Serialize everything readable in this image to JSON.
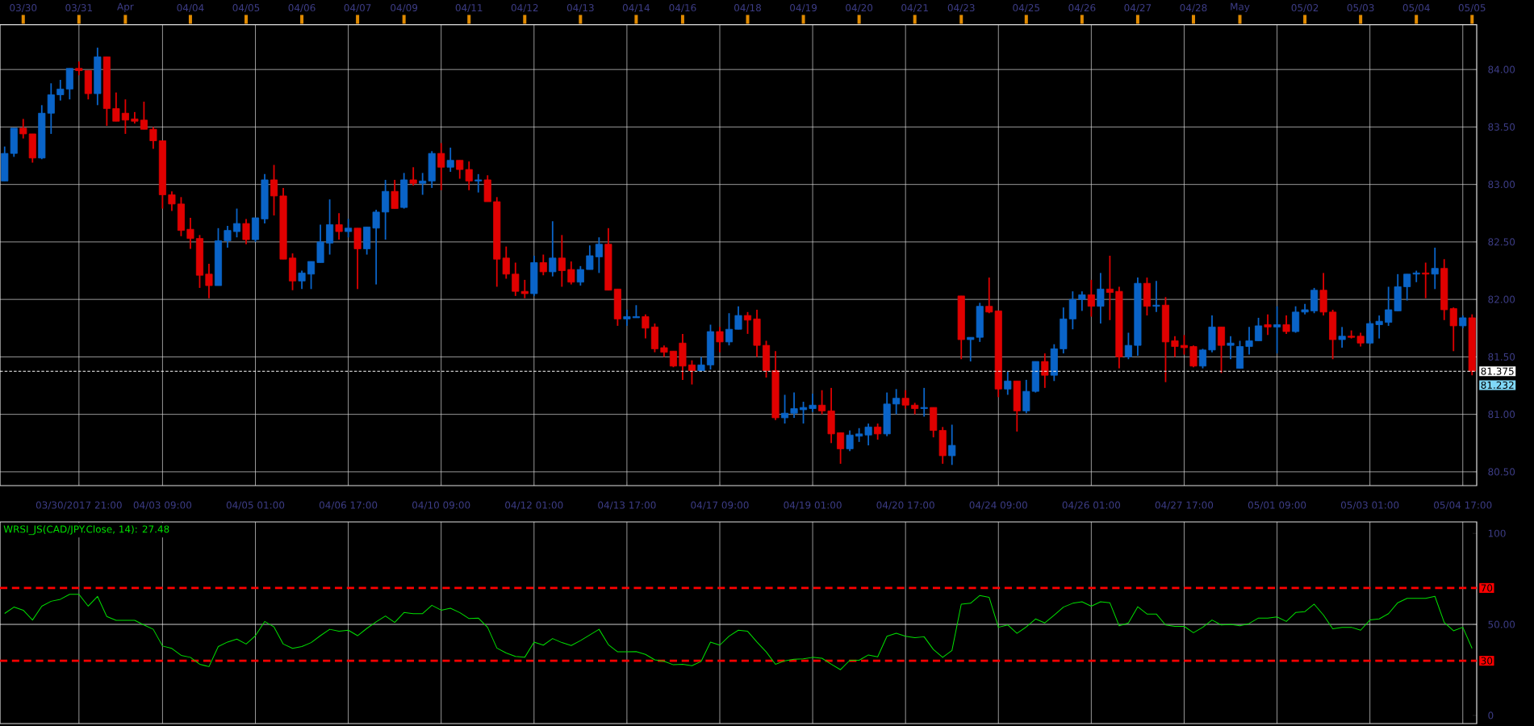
{
  "chart_data": [
    {
      "type": "other",
      "categories": [
        null,
        null,
        "03/30",
        null,
        null,
        null,
        null,
        null,
        "03/31",
        null,
        null,
        null,
        null,
        "Apr",
        null,
        null,
        null,
        null,
        null,
        null,
        "04/04",
        null,
        null,
        null,
        null,
        null,
        "04/05",
        null,
        null,
        null,
        null,
        null,
        "04/06",
        null,
        null,
        null,
        null,
        null,
        "04/07",
        null,
        null,
        null,
        null,
        "04/09",
        null,
        null,
        null,
        null,
        null,
        null,
        "04/11",
        null,
        null,
        null,
        null,
        null,
        "04/12",
        null,
        null,
        null,
        null,
        null,
        "04/13",
        null,
        null,
        null,
        null,
        null,
        "04/14",
        null,
        null,
        null,
        null,
        "04/16",
        null,
        null,
        null,
        null,
        null,
        null,
        "04/18",
        null,
        null,
        null,
        null,
        null,
        "04/19",
        null,
        null,
        null,
        null,
        null,
        "04/20",
        null,
        null,
        null,
        null,
        null,
        "04/21",
        null,
        null,
        null,
        null,
        "04/23",
        null,
        null,
        null,
        null,
        null,
        null,
        "04/25",
        null,
        null,
        null,
        null,
        null,
        "04/26",
        null,
        null,
        null,
        null,
        null,
        "04/27",
        null,
        null,
        null,
        null,
        null,
        "04/28",
        null,
        null,
        null,
        null,
        "May",
        null,
        null,
        null,
        null,
        null,
        null,
        "05/02",
        null,
        null,
        null,
        null,
        null,
        "05/03",
        null,
        null,
        null,
        null,
        null,
        "05/04",
        null,
        null,
        null,
        null,
        null,
        "05/05"
      ]
    },
    {
      "type": "candlestick",
      "categories": [
        null,
        null,
        null,
        null,
        null,
        null,
        null,
        null,
        "03/30/2017 21:00",
        null,
        null,
        null,
        null,
        null,
        null,
        null,
        null,
        "04/03 09:00",
        null,
        null,
        null,
        null,
        null,
        null,
        null,
        null,
        null,
        "04/05 01:00",
        null,
        null,
        null,
        null,
        null,
        null,
        null,
        null,
        null,
        "04/06 17:00",
        null,
        null,
        null,
        null,
        null,
        null,
        null,
        null,
        null,
        "04/10 09:00",
        null,
        null,
        null,
        null,
        null,
        null,
        null,
        null,
        null,
        "04/12 01:00",
        null,
        null,
        null,
        null,
        null,
        null,
        null,
        null,
        null,
        "04/13 17:00",
        null,
        null,
        null,
        null,
        null,
        null,
        null,
        null,
        null,
        "04/17 09:00",
        null,
        null,
        null,
        null,
        null,
        null,
        null,
        null,
        null,
        "04/19 01:00",
        null,
        null,
        null,
        null,
        null,
        null,
        null,
        null,
        null,
        "04/20 17:00",
        null,
        null,
        null,
        null,
        null,
        null,
        null,
        null,
        null,
        "04/24 09:00",
        null,
        null,
        null,
        null,
        null,
        null,
        null,
        null,
        null,
        "04/26 01:00",
        null,
        null,
        null,
        null,
        null,
        null,
        null,
        null,
        null,
        "04/27 17:00",
        null,
        null,
        null,
        null,
        null,
        null,
        null,
        null,
        null,
        "05/01 09:00",
        null,
        null,
        null,
        null,
        null,
        null,
        null,
        null,
        null,
        "05/03 01:00",
        null,
        null,
        null,
        null,
        null,
        null,
        null,
        null,
        null,
        "05/04 17:00",
        null
      ],
      "ohlc": [
        [
          83.03,
          83.33,
          83.03,
          83.27
        ],
        [
          83.27,
          83.49,
          83.24,
          83.49
        ],
        [
          83.49,
          83.57,
          83.4,
          83.44
        ],
        [
          83.44,
          83.44,
          83.19,
          83.23
        ],
        [
          83.23,
          83.69,
          83.22,
          83.62
        ],
        [
          83.62,
          83.88,
          83.44,
          83.78
        ],
        [
          83.78,
          83.91,
          83.73,
          83.83
        ],
        [
          83.83,
          84.01,
          83.74,
          84.01
        ],
        [
          84.01,
          84.07,
          83.95,
          83.99
        ],
        [
          83.99,
          83.99,
          83.74,
          83.79
        ],
        [
          83.79,
          84.19,
          83.69,
          84.11
        ],
        [
          84.11,
          84.11,
          83.51,
          83.66
        ],
        [
          83.66,
          83.8,
          83.55,
          83.55
        ],
        [
          83.62,
          83.74,
          83.44,
          83.56
        ],
        [
          83.57,
          83.63,
          83.53,
          83.55
        ],
        [
          83.56,
          83.72,
          83.48,
          83.48
        ],
        [
          83.48,
          83.5,
          83.31,
          83.38
        ],
        [
          83.38,
          83.38,
          82.79,
          82.91
        ],
        [
          82.91,
          82.94,
          82.77,
          82.83
        ],
        [
          82.83,
          82.89,
          82.55,
          82.6
        ],
        [
          82.61,
          82.71,
          82.44,
          82.53
        ],
        [
          82.53,
          82.56,
          82.1,
          82.21
        ],
        [
          82.22,
          82.31,
          82.01,
          82.12
        ],
        [
          82.12,
          82.62,
          82.12,
          82.51
        ],
        [
          82.51,
          82.64,
          82.45,
          82.6
        ],
        [
          82.59,
          82.79,
          82.54,
          82.66
        ],
        [
          82.66,
          82.7,
          82.48,
          82.52
        ],
        [
          82.52,
          82.71,
          82.5,
          82.71
        ],
        [
          82.7,
          83.09,
          82.66,
          83.04
        ],
        [
          83.04,
          83.17,
          82.73,
          82.9
        ],
        [
          82.9,
          82.97,
          82.35,
          82.35
        ],
        [
          82.36,
          82.4,
          82.08,
          82.16
        ],
        [
          82.16,
          82.25,
          82.09,
          82.23
        ],
        [
          82.22,
          82.33,
          82.09,
          82.33
        ],
        [
          82.32,
          82.65,
          82.32,
          82.5
        ],
        [
          82.49,
          82.87,
          82.39,
          82.65
        ],
        [
          82.65,
          82.75,
          82.52,
          82.59
        ],
        [
          82.59,
          82.7,
          82.54,
          82.62
        ],
        [
          82.62,
          82.62,
          82.09,
          82.44
        ],
        [
          82.44,
          82.63,
          82.39,
          82.63
        ],
        [
          82.62,
          82.78,
          82.13,
          82.76
        ],
        [
          82.76,
          83.04,
          82.52,
          82.94
        ],
        [
          82.94,
          83.04,
          82.79,
          82.79
        ],
        [
          82.8,
          83.1,
          82.79,
          83.04
        ],
        [
          83.04,
          83.15,
          82.99,
          83.01
        ],
        [
          83.01,
          83.1,
          82.91,
          83.03
        ],
        [
          83.03,
          83.29,
          82.97,
          83.27
        ],
        [
          83.27,
          83.36,
          82.95,
          83.15
        ],
        [
          83.15,
          83.32,
          83.11,
          83.21
        ],
        [
          83.21,
          83.21,
          83.05,
          83.13
        ],
        [
          83.13,
          83.2,
          82.95,
          83.03
        ],
        [
          83.03,
          83.09,
          82.93,
          83.04
        ],
        [
          83.04,
          83.08,
          82.85,
          82.85
        ],
        [
          82.85,
          82.89,
          82.11,
          82.35
        ],
        [
          82.36,
          82.46,
          82.18,
          82.22
        ],
        [
          82.22,
          82.32,
          82.03,
          82.07
        ],
        [
          82.07,
          82.17,
          82.01,
          82.05
        ],
        [
          82.05,
          82.38,
          82.03,
          82.32
        ],
        [
          82.32,
          82.39,
          82.21,
          82.24
        ],
        [
          82.24,
          82.68,
          82.2,
          82.36
        ],
        [
          82.36,
          82.56,
          82.11,
          82.25
        ],
        [
          82.26,
          82.33,
          82.13,
          82.15
        ],
        [
          82.15,
          82.29,
          82.12,
          82.26
        ],
        [
          82.26,
          82.47,
          82.26,
          82.38
        ],
        [
          82.37,
          82.54,
          82.23,
          82.48
        ],
        [
          82.48,
          82.62,
          82.08,
          82.08
        ],
        [
          82.09,
          82.09,
          81.77,
          81.83
        ],
        [
          81.83,
          81.91,
          81.77,
          81.85
        ],
        [
          81.84,
          81.95,
          81.84,
          81.85
        ],
        [
          81.85,
          81.87,
          81.66,
          81.75
        ],
        [
          81.76,
          81.79,
          81.54,
          81.57
        ],
        [
          81.58,
          81.6,
          81.5,
          81.54
        ],
        [
          81.55,
          81.55,
          81.41,
          81.42
        ],
        [
          81.62,
          81.7,
          81.3,
          81.42
        ],
        [
          81.43,
          81.47,
          81.26,
          81.38
        ],
        [
          81.38,
          81.5,
          81.38,
          81.43
        ],
        [
          81.43,
          81.78,
          81.39,
          81.72
        ],
        [
          81.72,
          81.76,
          81.54,
          81.63
        ],
        [
          81.63,
          81.88,
          81.6,
          81.74
        ],
        [
          81.74,
          81.94,
          81.74,
          81.86
        ],
        [
          81.86,
          81.89,
          81.7,
          81.82
        ],
        [
          81.83,
          81.91,
          81.5,
          81.6
        ],
        [
          81.6,
          81.64,
          81.32,
          81.38
        ],
        [
          81.38,
          81.55,
          80.95,
          80.97
        ],
        [
          80.97,
          81.17,
          80.92,
          81.01
        ],
        [
          81.01,
          81.19,
          80.97,
          81.05
        ],
        [
          81.04,
          81.11,
          80.92,
          81.06
        ],
        [
          81.05,
          81.18,
          81.02,
          81.08
        ],
        [
          81.08,
          81.21,
          81.0,
          81.03
        ],
        [
          81.03,
          81.23,
          80.75,
          80.83
        ],
        [
          80.84,
          80.84,
          80.57,
          80.7
        ],
        [
          80.7,
          80.86,
          80.68,
          80.82
        ],
        [
          80.81,
          80.88,
          80.76,
          80.83
        ],
        [
          80.82,
          80.92,
          80.73,
          80.89
        ],
        [
          80.89,
          80.92,
          80.78,
          80.83
        ],
        [
          80.83,
          81.19,
          80.81,
          81.09
        ],
        [
          81.09,
          81.22,
          81.0,
          81.14
        ],
        [
          81.14,
          81.21,
          81.05,
          81.08
        ],
        [
          81.08,
          81.1,
          81.0,
          81.05
        ],
        [
          81.05,
          81.23,
          80.98,
          81.06
        ],
        [
          81.06,
          81.06,
          80.8,
          80.86
        ],
        [
          80.86,
          80.89,
          80.57,
          80.64
        ],
        [
          80.64,
          80.91,
          80.56,
          80.73
        ],
        [
          82.03,
          82.03,
          81.48,
          81.65
        ],
        [
          81.65,
          81.67,
          81.46,
          81.67
        ],
        [
          81.67,
          81.97,
          81.63,
          81.94
        ],
        [
          81.94,
          82.19,
          81.88,
          81.89
        ],
        [
          81.9,
          81.9,
          81.15,
          81.22
        ],
        [
          81.22,
          81.37,
          81.17,
          81.29
        ],
        [
          81.29,
          81.29,
          80.85,
          81.03
        ],
        [
          81.03,
          81.3,
          81.01,
          81.2
        ],
        [
          81.2,
          81.46,
          81.19,
          81.46
        ],
        [
          81.46,
          81.53,
          81.23,
          81.34
        ],
        [
          81.34,
          81.61,
          81.29,
          81.57
        ],
        [
          81.57,
          81.93,
          81.53,
          81.83
        ],
        [
          81.83,
          82.07,
          81.74,
          82.0
        ],
        [
          82.0,
          82.07,
          81.9,
          82.04
        ],
        [
          82.04,
          82.17,
          81.85,
          81.94
        ],
        [
          81.94,
          82.23,
          81.79,
          82.09
        ],
        [
          82.09,
          82.38,
          81.82,
          82.06
        ],
        [
          82.07,
          82.11,
          81.4,
          81.5
        ],
        [
          81.5,
          81.71,
          81.48,
          81.6
        ],
        [
          81.6,
          82.19,
          81.51,
          82.14
        ],
        [
          82.14,
          82.19,
          81.86,
          81.94
        ],
        [
          81.94,
          82.16,
          81.89,
          81.95
        ],
        [
          81.95,
          82.02,
          81.28,
          81.63
        ],
        [
          81.64,
          81.68,
          81.5,
          81.59
        ],
        [
          81.6,
          81.69,
          81.52,
          81.58
        ],
        [
          81.59,
          81.6,
          81.41,
          81.42
        ],
        [
          81.42,
          81.57,
          81.4,
          81.56
        ],
        [
          81.56,
          81.86,
          81.54,
          81.76
        ],
        [
          81.76,
          81.76,
          81.36,
          81.6
        ],
        [
          81.6,
          81.68,
          81.48,
          81.62
        ],
        [
          81.4,
          81.64,
          81.4,
          81.59
        ],
        [
          81.59,
          81.76,
          81.52,
          81.64
        ],
        [
          81.64,
          81.84,
          81.64,
          81.77
        ],
        [
          81.78,
          81.87,
          81.69,
          81.76
        ],
        [
          81.76,
          81.94,
          81.53,
          81.78
        ],
        [
          81.78,
          81.86,
          81.7,
          81.72
        ],
        [
          81.72,
          81.94,
          81.71,
          81.89
        ],
        [
          81.89,
          81.96,
          81.87,
          81.91
        ],
        [
          81.9,
          82.1,
          81.88,
          82.08
        ],
        [
          82.08,
          82.23,
          81.86,
          81.89
        ],
        [
          81.89,
          81.91,
          81.48,
          81.65
        ],
        [
          81.65,
          81.76,
          81.58,
          81.68
        ],
        [
          81.68,
          81.73,
          81.66,
          81.67
        ],
        [
          81.68,
          81.71,
          81.59,
          81.62
        ],
        [
          81.62,
          81.81,
          81.61,
          81.79
        ],
        [
          81.78,
          81.86,
          81.66,
          81.81
        ],
        [
          81.8,
          82.11,
          81.77,
          81.91
        ],
        [
          81.9,
          82.22,
          81.9,
          82.11
        ],
        [
          82.11,
          82.22,
          81.99,
          82.22
        ],
        [
          82.22,
          82.25,
          82.15,
          82.23
        ],
        [
          82.23,
          82.32,
          82.01,
          82.22
        ],
        [
          82.22,
          82.45,
          82.09,
          82.27
        ],
        [
          82.27,
          82.35,
          81.82,
          81.91
        ],
        [
          81.92,
          81.93,
          81.55,
          81.77
        ],
        [
          81.77,
          81.86,
          81.75,
          81.84
        ],
        [
          81.84,
          81.87,
          81.34,
          81.375
        ]
      ],
      "colors": [
        "#0a64c8",
        "#0a64c8",
        "#e00000",
        "#e00000",
        "#0a64c8",
        "#0a64c8",
        "#0a64c8",
        "#0a64c8",
        "#e00000",
        "#e00000",
        "#0a64c8",
        "#e00000",
        "#e00000",
        "#e00000",
        "#e00000",
        "#e00000",
        "#e00000",
        "#e00000",
        "#e00000",
        "#e00000",
        "#e00000",
        "#e00000",
        "#e00000",
        "#0a64c8",
        "#0a64c8",
        "#0a64c8",
        "#e00000",
        "#0a64c8",
        "#0a64c8",
        "#e00000",
        "#e00000",
        "#e00000",
        "#0a64c8",
        "#0a64c8",
        "#0a64c8",
        "#0a64c8",
        "#e00000",
        "#0a64c8",
        "#e00000",
        "#0a64c8",
        "#0a64c8",
        "#0a64c8",
        "#e00000",
        "#0a64c8",
        "#e00000",
        "#0a64c8",
        "#0a64c8",
        "#e00000",
        "#0a64c8",
        "#e00000",
        "#e00000",
        "#0a64c8",
        "#e00000",
        "#e00000",
        "#e00000",
        "#e00000",
        "#e00000",
        "#0a64c8",
        "#e00000",
        "#0a64c8",
        "#e00000",
        "#e00000",
        "#0a64c8",
        "#0a64c8",
        "#0a64c8",
        "#e00000",
        "#e00000",
        "#0a64c8",
        "#0a64c8",
        "#e00000",
        "#e00000",
        "#e00000",
        "#e00000",
        "#e00000",
        "#e00000",
        "#0a64c8",
        "#0a64c8",
        "#e00000",
        "#0a64c8",
        "#0a64c8",
        "#e00000",
        "#e00000",
        "#e00000",
        "#e00000",
        "#0a64c8",
        "#0a64c8",
        "#0a64c8",
        "#0a64c8",
        "#e00000",
        "#e00000",
        "#e00000",
        "#0a64c8",
        "#0a64c8",
        "#0a64c8",
        "#e00000",
        "#0a64c8",
        "#0a64c8",
        "#e00000",
        "#e00000",
        "#0a64c8",
        "#e00000",
        "#e00000",
        "#0a64c8",
        "#e00000",
        "#0a64c8",
        "#0a64c8",
        "#e00000",
        "#e00000",
        "#0a64c8",
        "#e00000",
        "#0a64c8",
        "#0a64c8",
        "#e00000",
        "#0a64c8",
        "#0a64c8",
        "#0a64c8",
        "#0a64c8",
        "#e00000",
        "#0a64c8",
        "#e00000",
        "#e00000",
        "#0a64c8",
        "#0a64c8",
        "#e00000",
        "#0a64c8",
        "#e00000",
        "#e00000",
        "#e00000",
        "#e00000",
        "#0a64c8",
        "#0a64c8",
        "#e00000",
        "#0a64c8",
        "#0a64c8",
        "#0a64c8",
        "#0a64c8",
        "#e00000",
        "#0a64c8",
        "#e00000",
        "#0a64c8",
        "#0a64c8",
        "#0a64c8",
        "#e00000",
        "#e00000",
        "#0a64c8",
        "#e00000",
        "#e00000",
        "#0a64c8",
        "#0a64c8",
        "#0a64c8",
        "#0a64c8",
        "#0a64c8",
        "#0a64c8",
        "#e00000",
        "#0a64c8",
        "#e00000",
        "#e00000",
        "#0a64c8",
        "#e00000"
      ],
      "ylim": [
        80.38,
        84.39
      ],
      "yticks": [
        {
          "value": 80.5,
          "label": "80.50"
        },
        {
          "value": 81,
          "label": "81.00"
        },
        {
          "value": 81.5,
          "label": "81.50"
        },
        {
          "value": 82,
          "label": "82.00"
        },
        {
          "value": 82.5,
          "label": "82.50"
        },
        {
          "value": 83,
          "label": "83.00"
        },
        {
          "value": 83.5,
          "label": "83.50"
        },
        {
          "value": 84,
          "label": "84.00"
        }
      ],
      "grid": true,
      "ref_lines": [
        {
          "axis": "y",
          "value": 81.375,
          "label": "81.375",
          "color": "#ffffff",
          "line_style": "dashed"
        }
      ],
      "annotations": [
        "81.232"
      ]
    },
    {
      "type": "line",
      "title": "WRSI_JS(CAD/JPY.Close, 14): 27.48",
      "categories": [
        null,
        null,
        null,
        null,
        null,
        null,
        null,
        null,
        null,
        null,
        null,
        null,
        null,
        null,
        null,
        null,
        null,
        null,
        null,
        null,
        null,
        null,
        null,
        null,
        null,
        null,
        null,
        null,
        null,
        null,
        null,
        null,
        null,
        null,
        null,
        null,
        null,
        null,
        null,
        null,
        null,
        null,
        null,
        null,
        null,
        null,
        null,
        null,
        null,
        null,
        null,
        null,
        null,
        null,
        null,
        null,
        null,
        null,
        null,
        null,
        null,
        null,
        null,
        null,
        null,
        null,
        null,
        null,
        null,
        null,
        null,
        null,
        null,
        null,
        null,
        null,
        null,
        null,
        null,
        null,
        null,
        null,
        null,
        null,
        null,
        null,
        null,
        null,
        null,
        null,
        null,
        null,
        null,
        null,
        null,
        null,
        null,
        null,
        null,
        null,
        null,
        null,
        null,
        null,
        null,
        null,
        null,
        null,
        null,
        null,
        null,
        null,
        null,
        null,
        null,
        null,
        null,
        null,
        null,
        null,
        null,
        null,
        null,
        null,
        null,
        null,
        null,
        null,
        null,
        null,
        null,
        null,
        null,
        null,
        null,
        null,
        null,
        null,
        null,
        null,
        null,
        null,
        null,
        null,
        null,
        null,
        null,
        null,
        null,
        null,
        null,
        null,
        null,
        null,
        null,
        null,
        null,
        null,
        null
      ],
      "series": [
        {
          "color": "#00e000",
          "values": [
            56,
            59.5,
            57.8,
            52.4,
            60,
            62.7,
            63.8,
            66.5,
            66.5,
            60,
            65.4,
            54.3,
            52.2,
            52.2,
            52.2,
            49.7,
            47.3,
            38.1,
            36.8,
            33,
            31.9,
            28.1,
            26.8,
            37.8,
            40.3,
            41.9,
            39.2,
            43.8,
            51.6,
            48.6,
            39.2,
            36.8,
            37.8,
            40,
            43.8,
            47.3,
            46.2,
            46.8,
            43.8,
            47.8,
            51.4,
            54.6,
            51.1,
            56.5,
            55.9,
            55.9,
            60.5,
            57.8,
            58.9,
            56.5,
            53.2,
            53.5,
            48.4,
            37,
            34.3,
            32.4,
            31.9,
            40.3,
            38.6,
            42.2,
            40,
            38.4,
            41.1,
            44.2,
            47.3,
            38.9,
            34.9,
            34.9,
            35.1,
            33.5,
            30.5,
            29.7,
            27.8,
            28.1,
            27.3,
            29.7,
            40.3,
            38.6,
            43.5,
            46.8,
            46.2,
            40.3,
            34.9,
            28.1,
            30,
            30.8,
            31.1,
            31.9,
            31.4,
            28.1,
            25.1,
            30.3,
            30.3,
            33.2,
            32.2,
            43.5,
            45.1,
            43.5,
            42.7,
            43.2,
            36.2,
            31.9,
            35.7,
            61.1,
            61.6,
            65.9,
            64.9,
            48.4,
            49.7,
            45.1,
            48.6,
            53,
            50.8,
            55.1,
            59.5,
            61.6,
            62.4,
            60,
            62.4,
            61.9,
            49.2,
            50.8,
            59.7,
            55.7,
            55.7,
            49.7,
            48.9,
            48.9,
            45.4,
            48.4,
            52.4,
            49.7,
            50,
            49.2,
            50.5,
            53.5,
            53.5,
            54.1,
            51.6,
            56.5,
            57,
            61.1,
            55.1,
            47.6,
            48.4,
            48.4,
            46.8,
            52.4,
            53,
            55.9,
            61.9,
            64.3,
            64.3,
            64.3,
            65.4,
            51.1,
            46.5,
            48.4,
            36.8
          ]
        }
      ],
      "ylim": [
        -4.5,
        106.3
      ],
      "yticks": [
        {
          "value": 0,
          "label": "0"
        },
        {
          "value": 50,
          "label": "50.00"
        },
        {
          "value": 100,
          "label": "100"
        }
      ],
      "tick_labels": "y",
      "grid": "x",
      "ref_lines": [
        {
          "axis": "y",
          "value": 70,
          "label": "70",
          "color": "#ff0000",
          "line_style": "dashed"
        },
        {
          "axis": "y",
          "value": 30,
          "label": "30",
          "color": "#ff0000",
          "line_style": "dashed"
        },
        {
          "axis": "y",
          "value": 50,
          "color": "#ffffff",
          "line_style": "solid"
        }
      ]
    }
  ]
}
